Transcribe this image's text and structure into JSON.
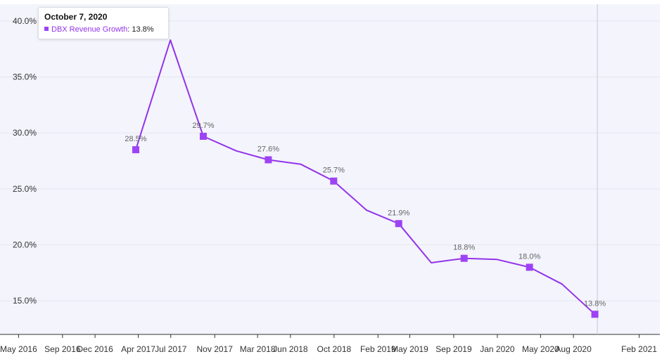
{
  "colors": {
    "plot_background": "#f3f4fc",
    "series": "#9333ea",
    "marker": "#9e42f5",
    "gridline": "#e6e6f0",
    "crosshair": "#c8c8d4"
  },
  "tooltip": {
    "date": "October 7, 2020",
    "series_name": "DBX Revenue Growth",
    "value": "13.8%"
  },
  "chart_data": {
    "type": "line",
    "title": "",
    "xlabel": "",
    "ylabel": "",
    "grid": true,
    "xlim": [
      "2016-03-10",
      "2021-03-31"
    ],
    "ylim": [
      12.0,
      41.5
    ],
    "y_ticks": [
      {
        "value": 15,
        "label": "15.0%"
      },
      {
        "value": 20,
        "label": "20.0%"
      },
      {
        "value": 25,
        "label": "25.0%"
      },
      {
        "value": 30,
        "label": "30.0%"
      },
      {
        "value": 35,
        "label": "35.0%"
      },
      {
        "value": 40,
        "label": "40.0%"
      }
    ],
    "x_ticks": [
      {
        "date": "2016-05-01",
        "label": "May 2016"
      },
      {
        "date": "2016-09-01",
        "label": "Sep 2016"
      },
      {
        "date": "2016-12-01",
        "label": "Dec 2016"
      },
      {
        "date": "2017-04-01",
        "label": "Apr 2017"
      },
      {
        "date": "2017-07-01",
        "label": "Jul 2017"
      },
      {
        "date": "2017-11-01",
        "label": "Nov 2017"
      },
      {
        "date": "2018-03-01",
        "label": "Mar 2018"
      },
      {
        "date": "2018-06-01",
        "label": "Jun 2018"
      },
      {
        "date": "2018-10-01",
        "label": "Oct 2018"
      },
      {
        "date": "2019-02-01",
        "label": "Feb 2019"
      },
      {
        "date": "2019-05-01",
        "label": "May 2019"
      },
      {
        "date": "2019-09-01",
        "label": "Sep 2019"
      },
      {
        "date": "2020-01-01",
        "label": "Jan 2020"
      },
      {
        "date": "2020-05-01",
        "label": "May 2020"
      },
      {
        "date": "2020-08-01",
        "label": "Aug 2020"
      },
      {
        "date": "2021-02-01",
        "label": "Feb 2021"
      }
    ],
    "crosshair_date": "2020-10-07",
    "series": [
      {
        "name": "DBX Revenue Growth",
        "points": [
          {
            "x": "2017-03-25",
            "y": 28.5,
            "marker": true,
            "label": "28.5%"
          },
          {
            "x": "2017-06-30",
            "y": 38.3,
            "marker": false,
            "label": ""
          },
          {
            "x": "2017-09-30",
            "y": 29.7,
            "marker": true,
            "label": "29.7%"
          },
          {
            "x": "2017-12-31",
            "y": 28.4,
            "marker": false,
            "label": ""
          },
          {
            "x": "2018-03-31",
            "y": 27.6,
            "marker": true,
            "label": "27.6%"
          },
          {
            "x": "2018-06-30",
            "y": 27.2,
            "marker": false,
            "label": ""
          },
          {
            "x": "2018-09-30",
            "y": 25.7,
            "marker": true,
            "label": "25.7%"
          },
          {
            "x": "2018-12-31",
            "y": 23.1,
            "marker": false,
            "label": ""
          },
          {
            "x": "2019-03-31",
            "y": 21.9,
            "marker": true,
            "label": "21.9%"
          },
          {
            "x": "2019-06-30",
            "y": 18.4,
            "marker": false,
            "label": ""
          },
          {
            "x": "2019-09-30",
            "y": 18.8,
            "marker": true,
            "label": "18.8%"
          },
          {
            "x": "2019-12-31",
            "y": 18.7,
            "marker": false,
            "label": ""
          },
          {
            "x": "2020-03-31",
            "y": 18.0,
            "marker": true,
            "label": "18.0%"
          },
          {
            "x": "2020-06-30",
            "y": 16.5,
            "marker": false,
            "label": ""
          },
          {
            "x": "2020-09-30",
            "y": 13.8,
            "marker": true,
            "label": "13.8%"
          }
        ]
      }
    ]
  }
}
